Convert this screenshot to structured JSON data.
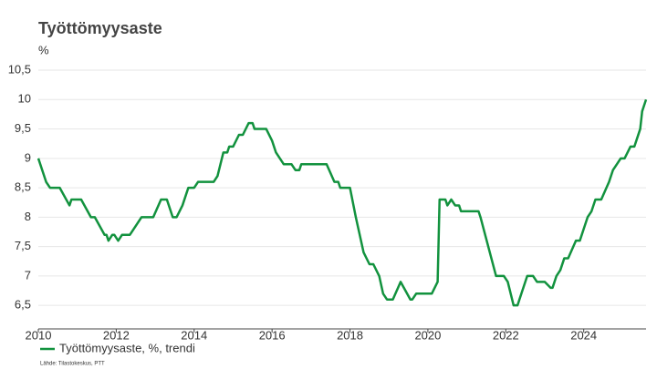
{
  "chart_data": {
    "type": "line",
    "title": "Työttömyysaste",
    "y_axis_label": "%",
    "source": "Lähde: Tilastokeskus, PTT",
    "x": [
      2010.0,
      2010.2,
      2010.3,
      2010.55,
      2010.8,
      2010.85,
      2011.1,
      2011.35,
      2011.45,
      2011.7,
      2011.75,
      2011.8,
      2011.9,
      2011.95,
      2012.05,
      2012.15,
      2012.35,
      2012.65,
      2012.95,
      2013.15,
      2013.3,
      2013.4,
      2013.45,
      2013.55,
      2013.7,
      2013.8,
      2013.85,
      2014.0,
      2014.1,
      2014.5,
      2014.6,
      2014.75,
      2014.85,
      2014.9,
      2015.0,
      2015.15,
      2015.25,
      2015.4,
      2015.5,
      2015.55,
      2015.85,
      2016.0,
      2016.1,
      2016.3,
      2016.5,
      2016.6,
      2016.7,
      2016.75,
      2017.4,
      2017.6,
      2017.7,
      2017.75,
      2018.0,
      2018.15,
      2018.35,
      2018.5,
      2018.6,
      2018.75,
      2018.85,
      2018.95,
      2019.1,
      2019.3,
      2019.55,
      2019.6,
      2019.7,
      2020.1,
      2020.25,
      2020.3,
      2020.45,
      2020.5,
      2020.6,
      2020.7,
      2020.8,
      2020.85,
      2021.3,
      2021.35,
      2021.75,
      2021.95,
      2022.05,
      2022.2,
      2022.3,
      2022.4,
      2022.55,
      2022.7,
      2022.8,
      2023.0,
      2023.15,
      2023.2,
      2023.3,
      2023.4,
      2023.5,
      2023.6,
      2023.8,
      2023.9,
      2024.0,
      2024.1,
      2024.2,
      2024.3,
      2024.45,
      2024.65,
      2024.75,
      2024.85,
      2024.95,
      2025.05,
      2025.2,
      2025.3,
      2025.35,
      2025.45,
      2025.5,
      2025.6
    ],
    "series": [
      {
        "name": "Työttömyysaste, %, trendi",
        "color": "#12923e",
        "values": [
          9.0,
          8.6,
          8.5,
          8.5,
          8.2,
          8.3,
          8.3,
          8.0,
          8.0,
          7.7,
          7.7,
          7.6,
          7.7,
          7.7,
          7.6,
          7.7,
          7.7,
          8.0,
          8.0,
          8.3,
          8.3,
          8.1,
          8.0,
          8.0,
          8.2,
          8.4,
          8.5,
          8.5,
          8.6,
          8.6,
          8.7,
          9.1,
          9.1,
          9.2,
          9.2,
          9.4,
          9.4,
          9.6,
          9.6,
          9.5,
          9.5,
          9.3,
          9.1,
          8.9,
          8.9,
          8.8,
          8.8,
          8.9,
          8.9,
          8.6,
          8.6,
          8.5,
          8.5,
          8.0,
          7.4,
          7.2,
          7.2,
          7.0,
          6.7,
          6.6,
          6.6,
          6.9,
          6.6,
          6.6,
          6.7,
          6.7,
          6.9,
          8.3,
          8.3,
          8.2,
          8.3,
          8.2,
          8.2,
          8.1,
          8.1,
          8.0,
          7.0,
          7.0,
          6.9,
          6.5,
          6.5,
          6.7,
          7.0,
          7.0,
          6.9,
          6.9,
          6.8,
          6.8,
          7.0,
          7.1,
          7.3,
          7.3,
          7.6,
          7.6,
          7.8,
          8.0,
          8.1,
          8.3,
          8.3,
          8.6,
          8.8,
          8.9,
          9.0,
          9.0,
          9.2,
          9.2,
          9.3,
          9.5,
          9.8,
          10.0
        ]
      }
    ],
    "xlim": [
      2010,
      2025.6
    ],
    "xticks": [
      2010,
      2012,
      2014,
      2016,
      2018,
      2020,
      2022,
      2024
    ],
    "ylim": [
      6.1,
      10.5
    ],
    "yticks": [
      {
        "value": 6.5,
        "label": "6,5"
      },
      7,
      {
        "value": 7.5,
        "label": "7,5"
      },
      8,
      {
        "value": 8.5,
        "label": "8,5"
      },
      9,
      {
        "value": 9.5,
        "label": "9,5"
      },
      10,
      {
        "value": 10.5,
        "label": "10,5"
      }
    ],
    "grid": true
  }
}
